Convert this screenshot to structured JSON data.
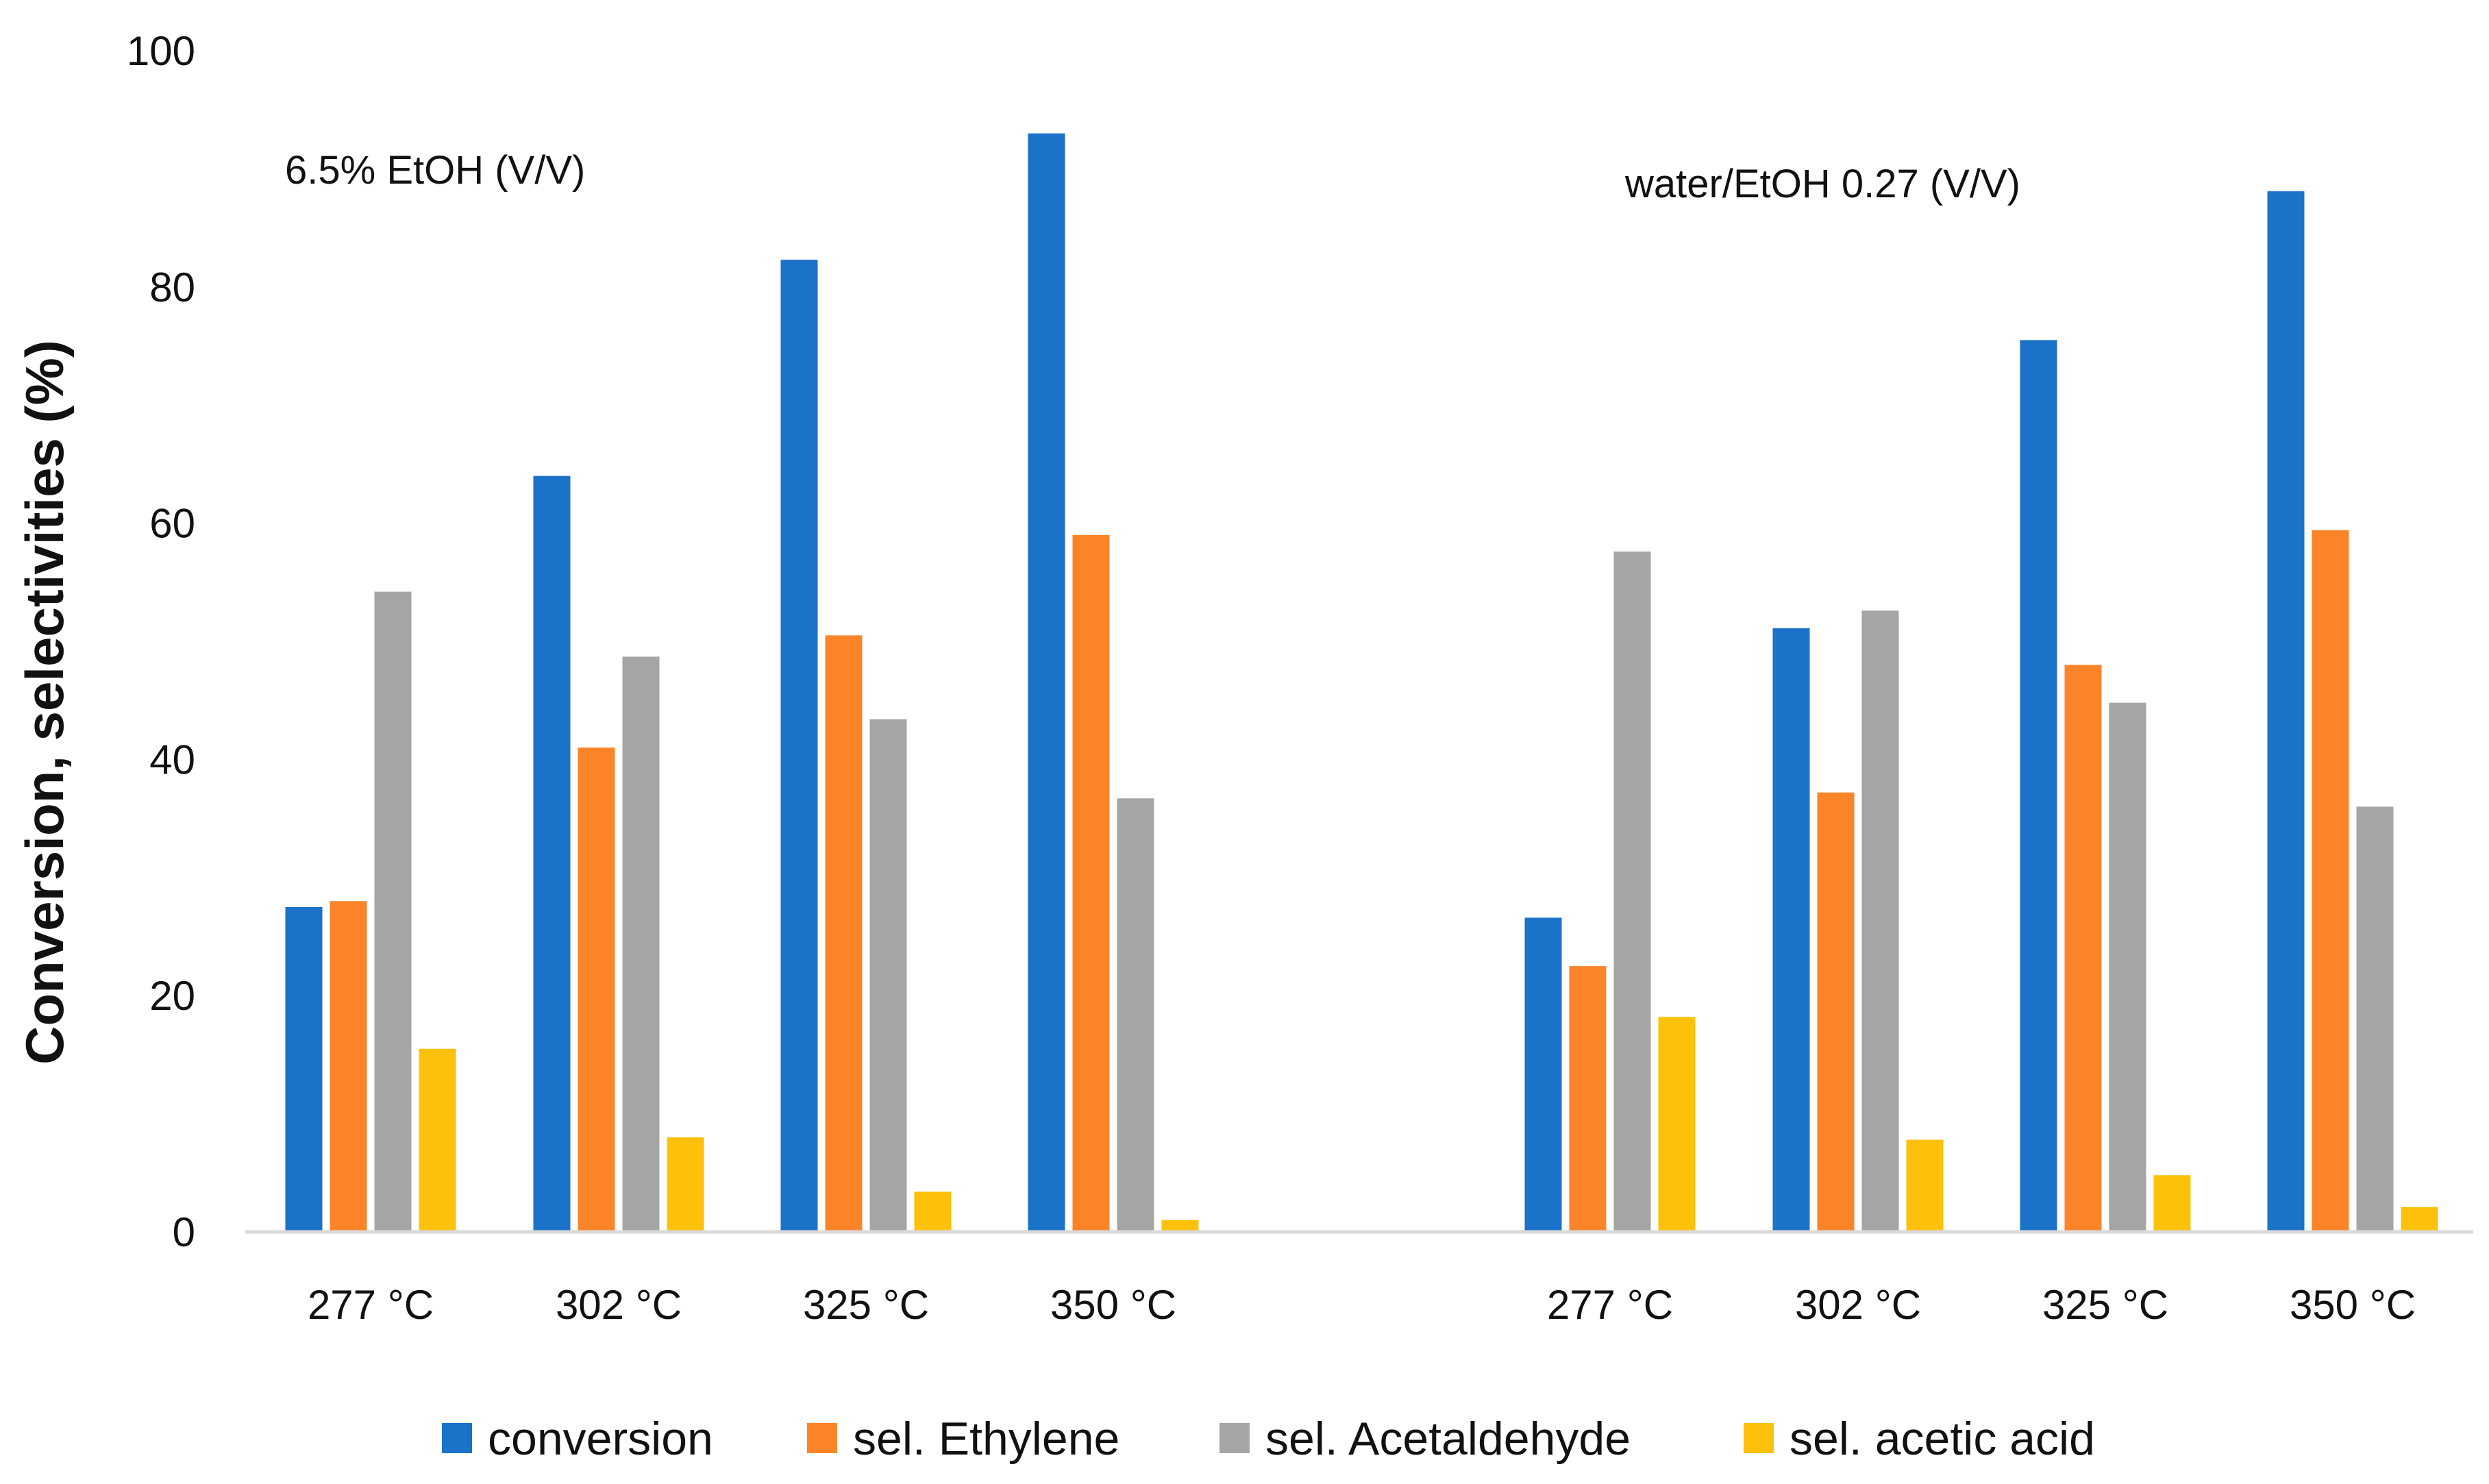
{
  "chart_data": {
    "type": "bar",
    "title": "",
    "xlabel": "",
    "ylabel": "Conversion, selectivities (%)",
    "ylim": [
      0,
      100
    ],
    "yticks": [
      0,
      20,
      40,
      60,
      80,
      100
    ],
    "grid": false,
    "legend_position": "bottom",
    "groups": [
      {
        "annotation": "6.5% EtOH (V/V)",
        "categories": [
          "277 °C",
          "302 °C",
          "325 °C",
          "350 °C"
        ],
        "series": [
          {
            "name": "conversion",
            "values": [
              27.5,
              64,
              82.3,
              93
            ]
          },
          {
            "name": "sel. Ethylene",
            "values": [
              28,
              41,
              50.5,
              59
            ]
          },
          {
            "name": "sel. Acetaldehyde",
            "values": [
              54.2,
              48.7,
              43.4,
              36.7
            ]
          },
          {
            "name": "sel. acetic acid",
            "values": [
              15.5,
              8,
              3.4,
              1
            ]
          }
        ]
      },
      {
        "annotation": "water/EtOH 0.27 (V/V)",
        "categories": [
          "277 °C",
          "302 °C",
          "325 °C",
          "350 °C"
        ],
        "series": [
          {
            "name": "conversion",
            "values": [
              26.6,
              51.1,
              75.5,
              88.1
            ]
          },
          {
            "name": "sel. Ethylene",
            "values": [
              22.5,
              37.2,
              48,
              59.4
            ]
          },
          {
            "name": "sel. Acetaldehyde",
            "values": [
              57.6,
              52.6,
              44.8,
              36
            ]
          },
          {
            "name": "sel. acetic acid",
            "values": [
              18.2,
              7.8,
              4.8,
              2.1
            ]
          }
        ]
      }
    ],
    "colors": [
      "#1b72c9",
      "#fb8428",
      "#a5a5a5",
      "#fdc10c"
    ]
  }
}
